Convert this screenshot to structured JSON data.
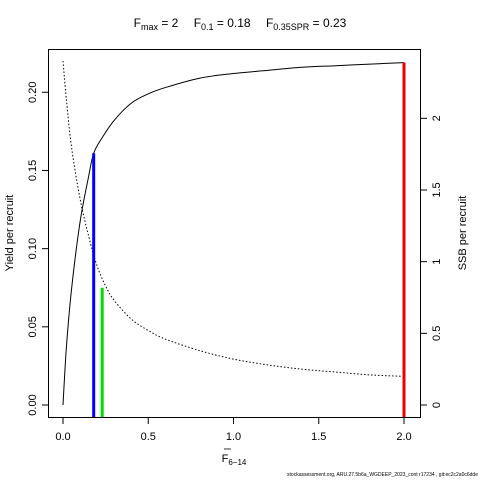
{
  "title_parts": {
    "fmax_label": "F",
    "fmax_sub": "max",
    "fmax_value": " = 2",
    "f01_label": "F",
    "f01_sub": "0.1",
    "f01_value": " = 0.18",
    "f035_label": "F",
    "f035_sub": "0.35SPR",
    "f035_value": " = 0.23"
  },
  "footer": "stockassessment.org, ARU.27.5b6a_WGDEEP_2023_cont r17234 , git:ec2c2a0c6dde",
  "chart_data": {
    "type": "line",
    "xlabel_main": "F",
    "xlabel_sub": "6−14",
    "ylabel_left": "Yield per recruit",
    "ylabel_right": "SSB per recruit",
    "xlim": [
      0,
      2
    ],
    "ylim_left": [
      0,
      0.22
    ],
    "ylim_right": [
      0,
      2.4
    ],
    "x_ticks": [
      0,
      0.5,
      1,
      1.5,
      2
    ],
    "x_tick_labels": [
      "0.0",
      "0.5",
      "1.0",
      "1.5",
      "2.0"
    ],
    "y_left_ticks": [
      0,
      0.05,
      0.1,
      0.15,
      0.2
    ],
    "y_left_tick_labels": [
      "0.00",
      "0.05",
      "0.10",
      "0.15",
      "0.20"
    ],
    "y_right_ticks": [
      0,
      0.5,
      1,
      1.5,
      2
    ],
    "y_right_tick_labels": [
      "0",
      "0.5",
      "1",
      "1.5",
      "2"
    ],
    "series": [
      {
        "style": "solid",
        "axis": "left",
        "x": [
          0,
          0.02,
          0.05,
          0.1,
          0.15,
          0.18,
          0.23,
          0.3,
          0.4,
          0.5,
          0.6,
          0.8,
          1.0,
          1.2,
          1.4,
          1.6,
          1.8,
          2.0
        ],
        "y": [
          0,
          0.037,
          0.074,
          0.117,
          0.146,
          0.161,
          0.171,
          0.182,
          0.193,
          0.199,
          0.203,
          0.209,
          0.212,
          0.214,
          0.216,
          0.217,
          0.218,
          0.219
        ]
      },
      {
        "style": "dotted",
        "axis": "right",
        "x": [
          0,
          0.02,
          0.05,
          0.1,
          0.15,
          0.2,
          0.25,
          0.3,
          0.4,
          0.5,
          0.6,
          0.8,
          1.0,
          1.2,
          1.4,
          1.6,
          1.8,
          2.0
        ],
        "y": [
          2.4,
          2.13,
          1.8,
          1.44,
          1.18,
          0.97,
          0.83,
          0.73,
          0.6,
          0.52,
          0.46,
          0.38,
          0.32,
          0.28,
          0.25,
          0.23,
          0.21,
          0.2
        ]
      }
    ],
    "reference_lines": [
      {
        "name": "F0.1",
        "x": 0.18,
        "y": 0.161,
        "color": "#0000ff"
      },
      {
        "name": "F0.35SPR",
        "x": 0.23,
        "y": 0.075,
        "color": "#00dd00"
      },
      {
        "name": "Fmax",
        "x": 2.0,
        "y": 0.219,
        "color": "#ee0000"
      }
    ]
  }
}
